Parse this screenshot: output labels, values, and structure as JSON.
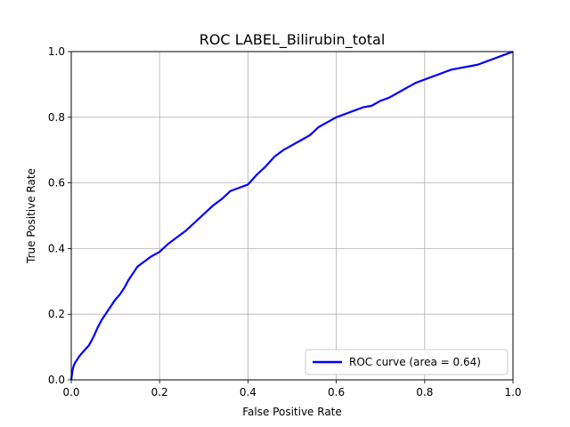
{
  "chart_data": {
    "type": "line",
    "title": "ROC LABEL_Bilirubin_total",
    "xlabel": "False Positive Rate",
    "ylabel": "True Positive Rate",
    "xlim": [
      0,
      1
    ],
    "ylim": [
      0,
      1
    ],
    "grid": true,
    "legend_position": "lower-right",
    "x_ticks": [
      "0.0",
      "0.2",
      "0.4",
      "0.6",
      "0.8",
      "1.0"
    ],
    "y_ticks": [
      "0.0",
      "0.2",
      "0.4",
      "0.6",
      "0.8",
      "1.0"
    ],
    "series": [
      {
        "name": "ROC curve (area = 0.64)",
        "color": "#0000ff",
        "x": [
          0.0,
          0.003,
          0.006,
          0.01,
          0.015,
          0.02,
          0.03,
          0.04,
          0.05,
          0.06,
          0.07,
          0.08,
          0.09,
          0.1,
          0.11,
          0.12,
          0.13,
          0.14,
          0.15,
          0.16,
          0.18,
          0.2,
          0.22,
          0.24,
          0.26,
          0.28,
          0.3,
          0.32,
          0.34,
          0.36,
          0.38,
          0.4,
          0.41,
          0.42,
          0.44,
          0.46,
          0.48,
          0.5,
          0.52,
          0.54,
          0.56,
          0.58,
          0.6,
          0.62,
          0.64,
          0.66,
          0.68,
          0.7,
          0.72,
          0.74,
          0.76,
          0.78,
          0.8,
          0.82,
          0.84,
          0.86,
          0.88,
          0.9,
          0.92,
          0.94,
          0.96,
          0.98,
          1.0
        ],
        "y": [
          0.0,
          0.03,
          0.045,
          0.055,
          0.065,
          0.075,
          0.09,
          0.105,
          0.13,
          0.16,
          0.185,
          0.205,
          0.225,
          0.245,
          0.26,
          0.28,
          0.305,
          0.325,
          0.345,
          0.355,
          0.375,
          0.39,
          0.415,
          0.435,
          0.455,
          0.48,
          0.505,
          0.53,
          0.55,
          0.575,
          0.585,
          0.595,
          0.61,
          0.625,
          0.65,
          0.68,
          0.7,
          0.715,
          0.73,
          0.745,
          0.77,
          0.785,
          0.8,
          0.81,
          0.82,
          0.83,
          0.835,
          0.85,
          0.86,
          0.875,
          0.89,
          0.905,
          0.915,
          0.925,
          0.935,
          0.945,
          0.95,
          0.955,
          0.96,
          0.97,
          0.98,
          0.99,
          1.0
        ]
      }
    ]
  }
}
